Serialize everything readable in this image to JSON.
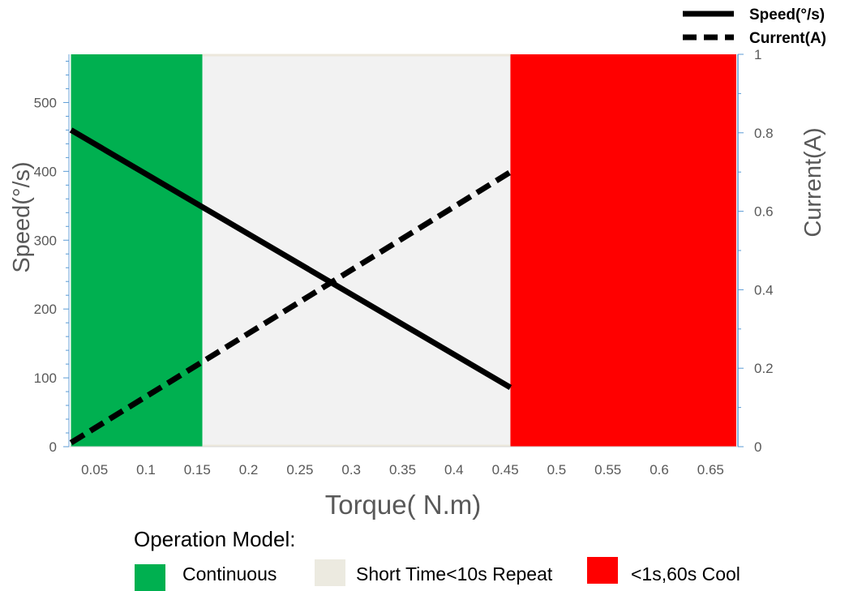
{
  "chart_data": {
    "type": "line",
    "xlabel": "Torque( N.m)",
    "ylabel": "Speed(°/s)",
    "y2label": "Current(A)",
    "xlim": [
      0.025,
      0.675
    ],
    "ylim": [
      0,
      570
    ],
    "y2lim": [
      0,
      1.0
    ],
    "x_ticks": [
      "0.05",
      "0.1",
      "0.15",
      "0.2",
      "0.25",
      "0.3",
      "0.35",
      "0.4",
      "0.45",
      "0.5",
      "0.55",
      "0.6",
      "0.65"
    ],
    "y_ticks": [
      "0",
      "100",
      "200",
      "300",
      "400",
      "500"
    ],
    "y2_ticks": [
      "0",
      "0.2",
      "0.4",
      "0.6",
      "0.8",
      "1"
    ],
    "series": [
      {
        "name": "Speed(°/s)",
        "axis": "left",
        "style": "solid",
        "color": "#000000",
        "x": [
          0.027,
          0.455
        ],
        "y": [
          460,
          86
        ]
      },
      {
        "name": "Current(A)",
        "axis": "right",
        "style": "dashed",
        "color": "#000000",
        "x": [
          0.027,
          0.455
        ],
        "y": [
          0.01,
          0.7
        ]
      }
    ],
    "zones": [
      {
        "label": "Continuous",
        "x_start": 0.027,
        "x_end": 0.155,
        "color": "#00b050"
      },
      {
        "label": "Short Time<10s Repeat",
        "x_start": 0.155,
        "x_end": 0.455,
        "color": "#f2f2f2"
      },
      {
        "label": "<1s,60s Cool",
        "x_start": 0.455,
        "x_end": 0.675,
        "color": "#ff0000"
      }
    ],
    "grid": false,
    "legend_position": "top-right",
    "zone_legend_title": "Operation Model:"
  }
}
